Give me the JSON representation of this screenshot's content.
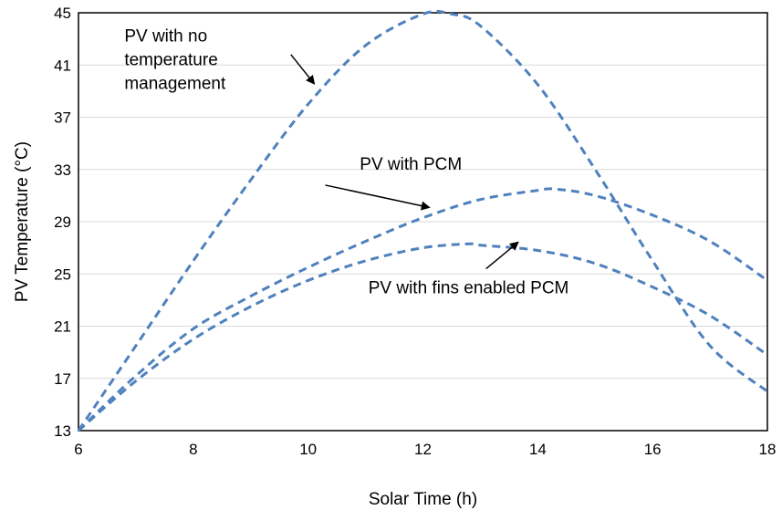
{
  "chart_data": {
    "type": "line",
    "title": "",
    "xlabel": "Solar Time (h)",
    "ylabel": "PV Temperature (°C)",
    "xlim": [
      6,
      18
    ],
    "ylim": [
      13,
      45
    ],
    "xticks": [
      6,
      8,
      10,
      12,
      14,
      16,
      18
    ],
    "yticks": [
      13,
      17,
      21,
      25,
      29,
      33,
      37,
      41,
      45
    ],
    "grid": "horizontal",
    "line_color": "#4F81BD",
    "series": [
      {
        "x": [
          6,
          7,
          8,
          9,
          10,
          11,
          12,
          12.5,
          13,
          14,
          15,
          16,
          17,
          18
        ],
        "y": [
          13,
          19.5,
          26,
          32.2,
          38,
          42.5,
          44.9,
          44.9,
          44,
          39.5,
          33,
          26,
          19.5,
          16
        ]
      },
      {
        "x": [
          6,
          7,
          8,
          9,
          10,
          11,
          12,
          13,
          14,
          14.3,
          15,
          16,
          17,
          18
        ],
        "y": [
          13,
          17.2,
          20.8,
          23.3,
          25.5,
          27.5,
          29.3,
          30.7,
          31.4,
          31.5,
          31,
          29.5,
          27.5,
          24.5
        ]
      },
      {
        "x": [
          6,
          7,
          8,
          9,
          10,
          11,
          12,
          12.8,
          13,
          14,
          15,
          16,
          17,
          18
        ],
        "y": [
          13,
          16.8,
          20,
          22.5,
          24.5,
          26,
          27,
          27.3,
          27.2,
          26.8,
          25.8,
          24,
          21.8,
          18.8
        ]
      }
    ],
    "annotations": [
      {
        "lines": [
          "PV with no",
          "temperature",
          "management"
        ],
        "text_at": [
          6.8,
          42.8
        ],
        "arrow_from": [
          9.7,
          41.8
        ],
        "arrow_to": [
          10.1,
          39.6
        ]
      },
      {
        "lines": [
          "PV with PCM"
        ],
        "text_at": [
          10.9,
          33
        ],
        "arrow_from": [
          10.3,
          31.8
        ],
        "arrow_to": [
          12.1,
          30.1
        ]
      },
      {
        "lines": [
          "PV with fins enabled PCM"
        ],
        "text_at": [
          11.05,
          23.5
        ],
        "arrow_from": [
          13.1,
          25.4
        ],
        "arrow_to": [
          13.65,
          27.4
        ]
      }
    ]
  }
}
